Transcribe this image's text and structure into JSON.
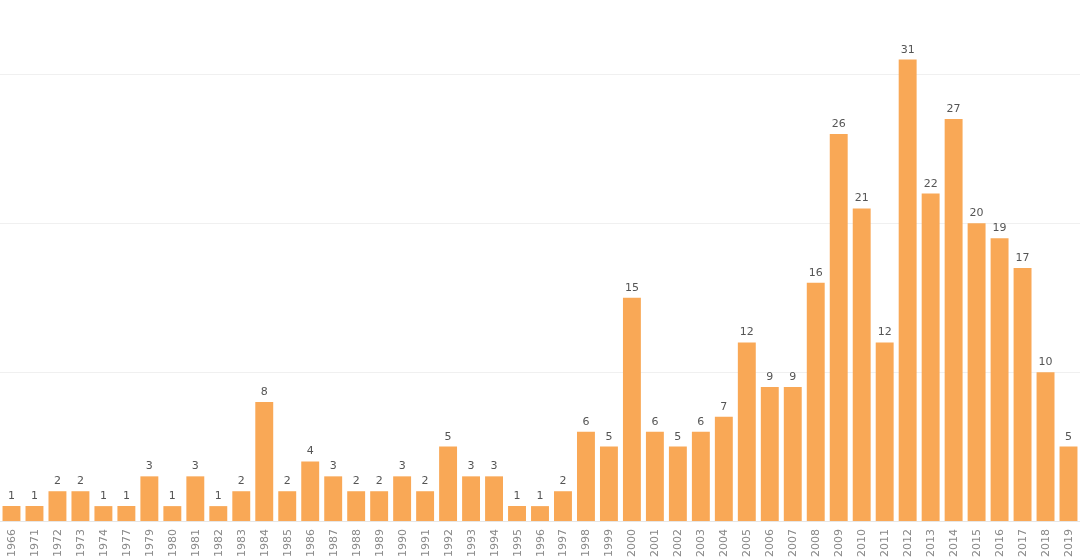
{
  "chart_data": {
    "type": "bar",
    "categories": [
      "1966",
      "1971",
      "1972",
      "1973",
      "1974",
      "1977",
      "1979",
      "1980",
      "1981",
      "1982",
      "1983",
      "1984",
      "1985",
      "1986",
      "1987",
      "1988",
      "1989",
      "1990",
      "1991",
      "1992",
      "1993",
      "1994",
      "1995",
      "1996",
      "1997",
      "1998",
      "1999",
      "2000",
      "2001",
      "2002",
      "2003",
      "2004",
      "2005",
      "2006",
      "2007",
      "2008",
      "2009",
      "2010",
      "2011",
      "2012",
      "2013",
      "2014",
      "2015",
      "2016",
      "2017",
      "2018",
      "2019"
    ],
    "values": [
      1,
      1,
      2,
      2,
      1,
      1,
      3,
      1,
      3,
      1,
      2,
      8,
      2,
      4,
      3,
      2,
      2,
      3,
      2,
      5,
      3,
      3,
      1,
      1,
      2,
      6,
      5,
      15,
      6,
      5,
      6,
      7,
      12,
      9,
      9,
      16,
      26,
      21,
      12,
      31,
      22,
      27,
      20,
      19,
      17,
      10,
      5
    ],
    "color": "#f9a856",
    "yticks": [
      {
        "value": 0,
        "label": null
      },
      {
        "value": 10,
        "label": null
      },
      {
        "value": 20,
        "label": null
      },
      {
        "value": 30,
        "label": null
      }
    ],
    "grid": "y",
    "data_labels": true,
    "tick_labels": "x"
  }
}
